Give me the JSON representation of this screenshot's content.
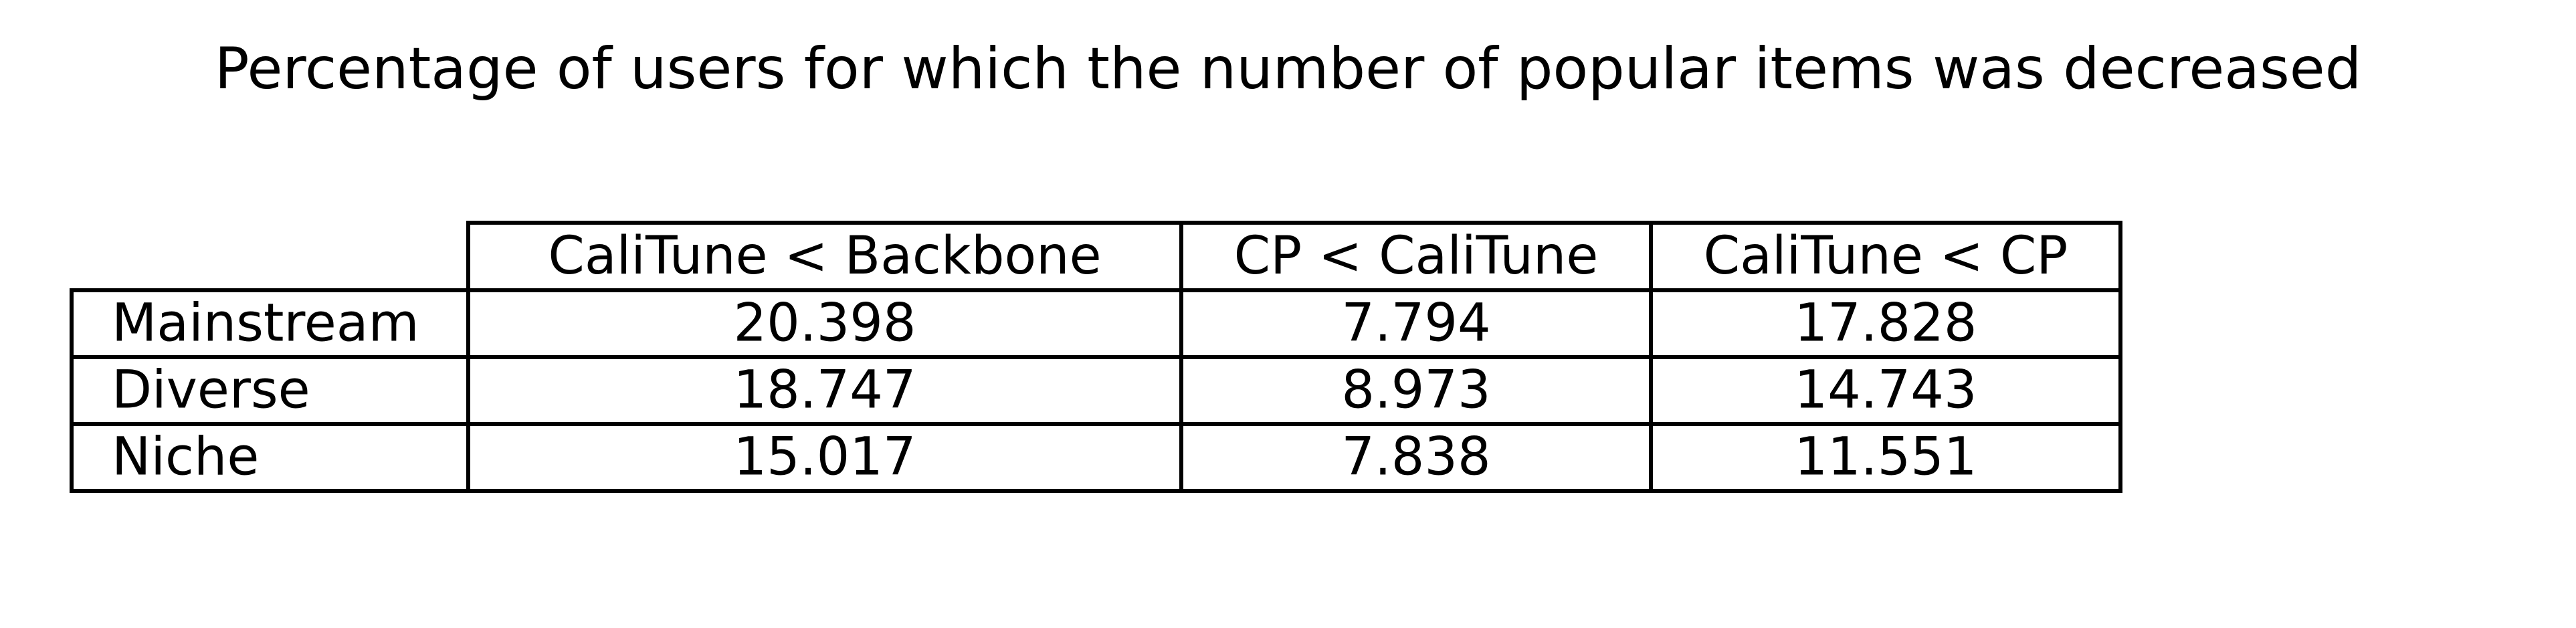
{
  "chart_data": {
    "type": "table",
    "title": "Percentage of users for which the number of popular items was decreased",
    "columns": [
      "CaliTune < Backbone",
      "CP < CaliTune",
      "CaliTune < CP"
    ],
    "rows": [
      {
        "label": "Mainstream",
        "values": [
          "20.398",
          "7.794",
          "17.828"
        ]
      },
      {
        "label": "Diverse",
        "values": [
          "18.747",
          "8.973",
          "14.743"
        ]
      },
      {
        "label": "Niche",
        "values": [
          "15.017",
          "7.838",
          "11.551"
        ]
      }
    ]
  }
}
